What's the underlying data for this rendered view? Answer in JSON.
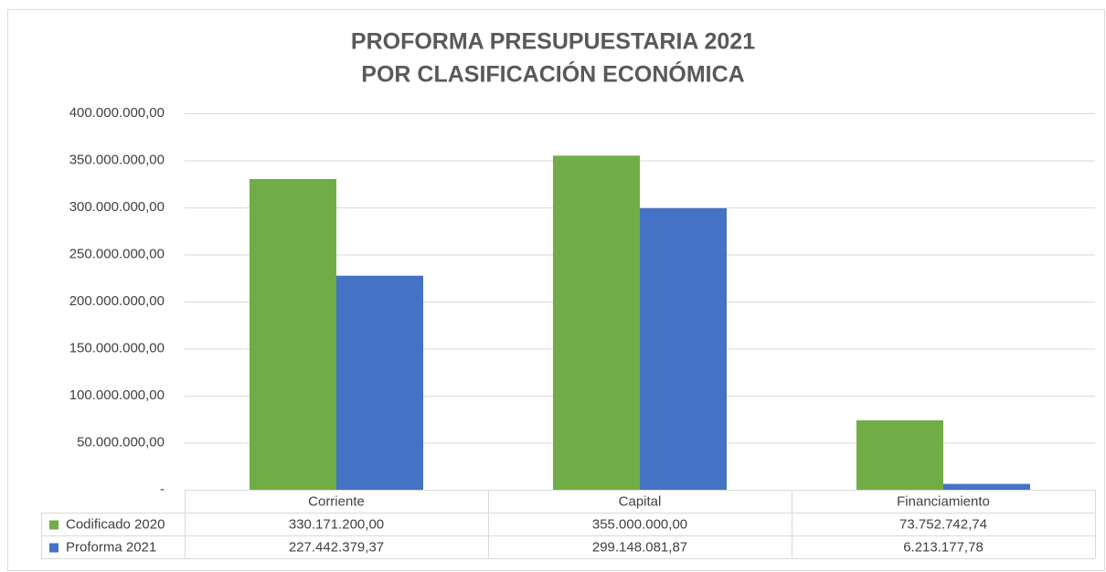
{
  "chart_data": {
    "type": "bar",
    "title": [
      "PROFORMA PRESUPUESTARIA 2021",
      "POR CLASIFICACIÓN ECONÓMICA"
    ],
    "categories": [
      "Corriente",
      "Capital",
      "Financiamiento"
    ],
    "series": [
      {
        "name": "Codificado 2020",
        "color": "#70ad47",
        "values": [
          330171200,
          355000000,
          73752742.74
        ],
        "value_labels": [
          "330.171.200,00",
          "355.000.000,00",
          "73.752.742,74"
        ]
      },
      {
        "name": "Proforma 2021",
        "color": "#4472c4",
        "values": [
          227442379.37,
          299148081.87,
          6213177.78
        ],
        "value_labels": [
          "227.442.379,37",
          "299.148.081,87",
          "6.213.177,78"
        ]
      }
    ],
    "ylim": [
      0,
      400000000
    ],
    "yticks": [
      {
        "value": 0,
        "label": "-"
      },
      {
        "value": 50000000,
        "label": "50.000.000,00"
      },
      {
        "value": 100000000,
        "label": "100.000.000,00"
      },
      {
        "value": 150000000,
        "label": "150.000.000,00"
      },
      {
        "value": 200000000,
        "label": "200.000.000,00"
      },
      {
        "value": 250000000,
        "label": "250.000.000,00"
      },
      {
        "value": 300000000,
        "label": "300.000.000,00"
      },
      {
        "value": 350000000,
        "label": "350.000.000,00"
      },
      {
        "value": 400000000,
        "label": "400.000.000,00"
      }
    ],
    "grid": true
  }
}
